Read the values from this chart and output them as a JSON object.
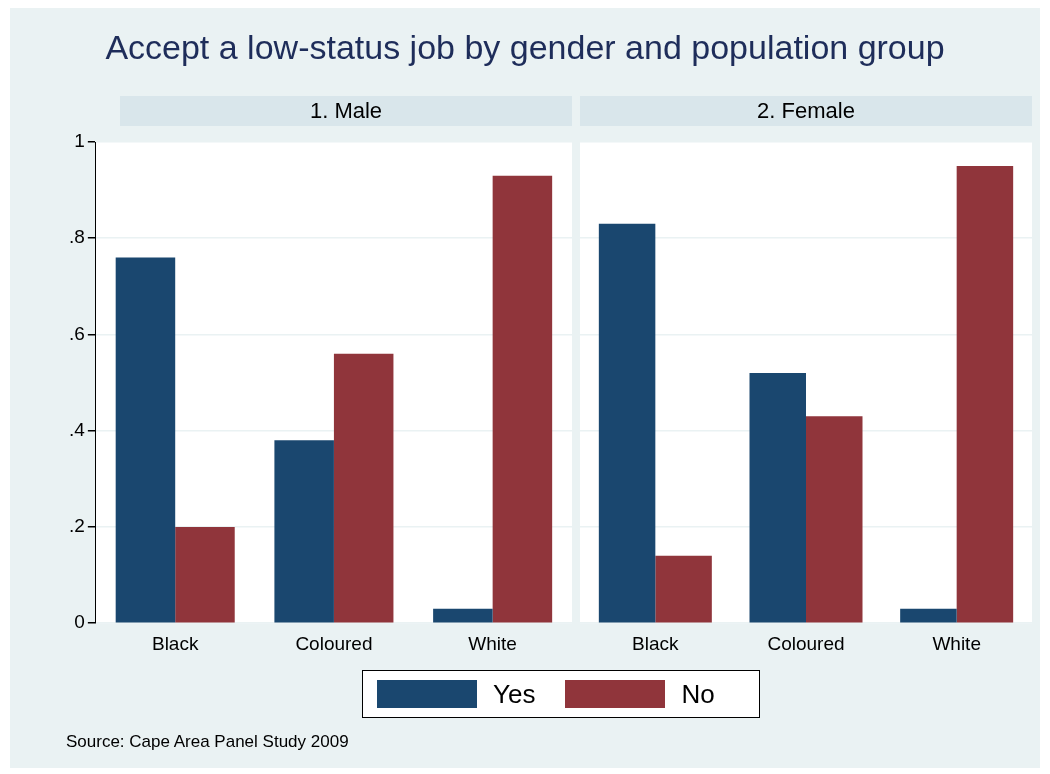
{
  "chart_data": [
    {
      "type": "bar",
      "title": "Accept a low-status job by gender and population group",
      "subtitle": "1. Male",
      "categories": [
        "Black",
        "Coloured",
        "White"
      ],
      "series": [
        {
          "name": "Yes",
          "color": "#1a476f",
          "values": [
            0.76,
            0.38,
            0.03
          ]
        },
        {
          "name": "No",
          "color": "#90353b",
          "values": [
            0.2,
            0.56,
            0.93
          ]
        }
      ],
      "ylim": [
        0,
        1
      ],
      "yticks": [
        0,
        {
          "value": 0.2,
          "label": ".2"
        },
        {
          "value": 0.4,
          "label": ".4"
        },
        {
          "value": 0.6,
          "label": ".6"
        },
        {
          "value": 0.8,
          "label": ".8"
        },
        1
      ],
      "grid": "y",
      "legend": "bottom",
      "annotations": [
        "Source: Cape Area Panel Study 2009"
      ]
    },
    {
      "type": "bar",
      "subtitle": "2. Female",
      "categories": [
        "Black",
        "Coloured",
        "White"
      ],
      "series": [
        {
          "name": "Yes",
          "color": "#1a476f",
          "values": [
            0.83,
            0.52,
            0.03
          ]
        },
        {
          "name": "No",
          "color": "#90353b",
          "values": [
            0.14,
            0.43,
            0.95
          ]
        }
      ],
      "ylim": [
        0,
        1
      ],
      "yticks": [
        {
          "value": 0,
          "label": null
        },
        {
          "value": 0.2,
          "label": null
        },
        {
          "value": 0.4,
          "label": null
        },
        {
          "value": 0.6,
          "label": null
        },
        {
          "value": 0.8,
          "label": null
        },
        {
          "value": 1,
          "label": null
        }
      ],
      "grid": "y",
      "legend": false,
      "tick_labels": "x"
    }
  ]
}
